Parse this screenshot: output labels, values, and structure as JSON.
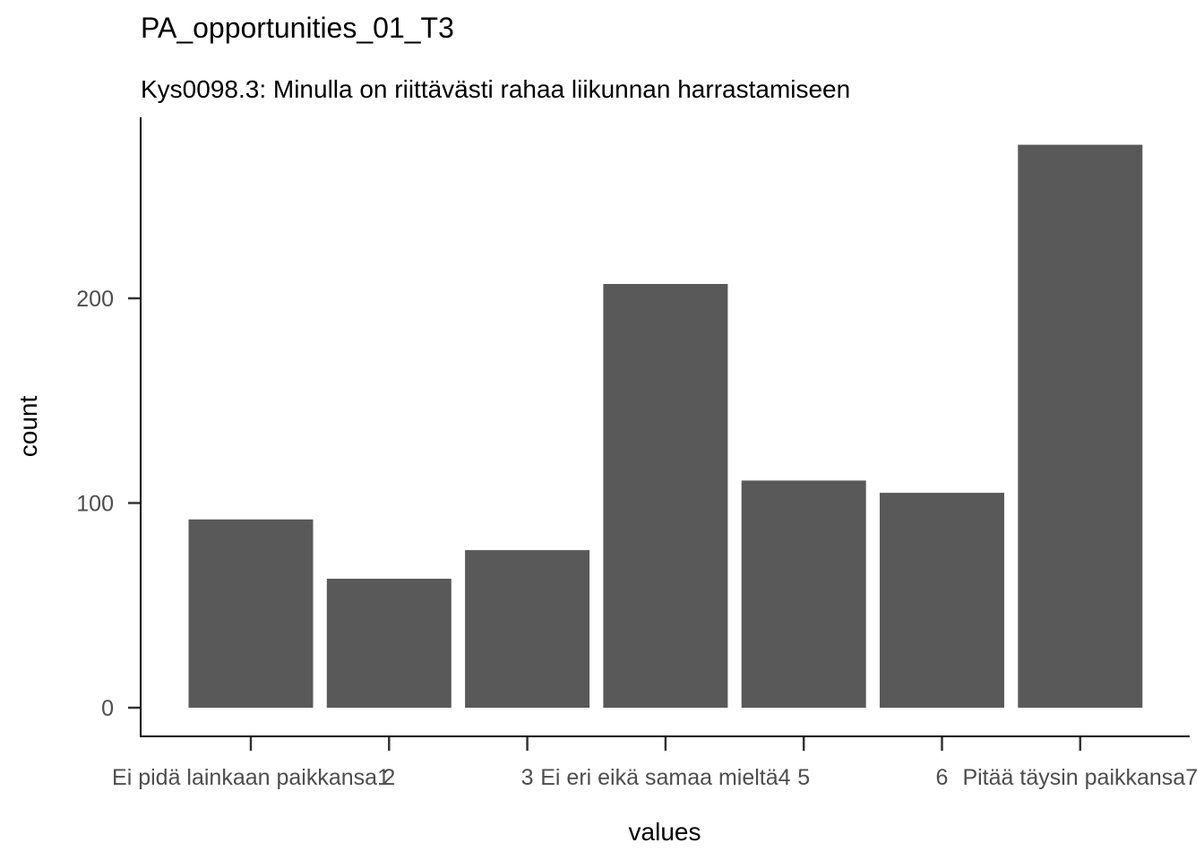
{
  "chart_data": {
    "type": "bar",
    "title": "PA_opportunities_01_T3",
    "subtitle": "Kys0098.3: Minulla on riittävästi rahaa liikunnan harrastamiseen",
    "xlabel": "values",
    "ylabel": "count",
    "categories": [
      "Ei pidä lainkaan paikkansa1",
      "2",
      "3",
      "Ei eri eikä samaa mieltä4",
      "5",
      "6",
      "Pitää täysin paikkansa7"
    ],
    "tick_labels_drawn": [
      "Ei pidä lainkaan paikkansa1",
      "2",
      "3",
      "Ei eri eikä samaa mieltä4",
      "5",
      "6",
      "Pitää täysin paikkansa7"
    ],
    "values": [
      92,
      63,
      77,
      207,
      111,
      105,
      275
    ],
    "ylim": [
      0,
      275
    ],
    "yticks": [
      0,
      100,
      200
    ],
    "grid": false,
    "bar_color": "#595959"
  }
}
